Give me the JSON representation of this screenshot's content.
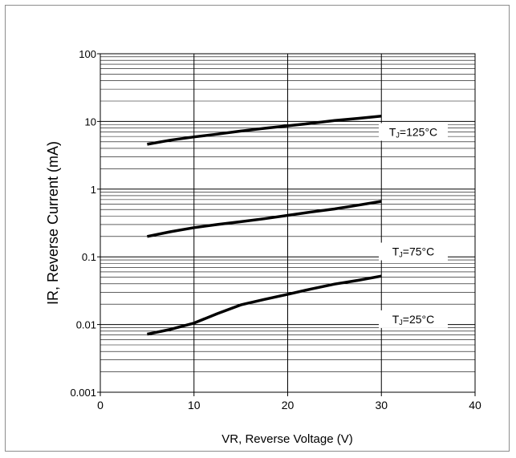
{
  "chart_data": {
    "type": "line",
    "title": "",
    "xlabel": "VR, Reverse Voltage (V)",
    "ylabel": "IR, Reverse Current (mA)",
    "xlim": [
      0,
      40
    ],
    "ylim": [
      0.001,
      100
    ],
    "yscale": "log",
    "grid": true,
    "x_ticks": [
      "0",
      "10",
      "20",
      "30",
      "40"
    ],
    "y_ticks": [
      "0.001",
      "0.01",
      "0.1",
      "1",
      "10",
      "100"
    ],
    "series": [
      {
        "name": "TJ=125°C",
        "x": [
          5,
          7.5,
          10,
          12.5,
          15,
          17.5,
          20,
          22.5,
          25,
          27.5,
          30
        ],
        "values": [
          4.6,
          5.3,
          5.9,
          6.5,
          7.2,
          7.9,
          8.6,
          9.4,
          10.3,
          11.1,
          12.0
        ]
      },
      {
        "name": "TJ=75°C",
        "x": [
          5,
          7.5,
          10,
          12.5,
          15,
          17.5,
          20,
          22.5,
          25,
          27.5,
          30
        ],
        "values": [
          0.2,
          0.235,
          0.27,
          0.3,
          0.33,
          0.365,
          0.41,
          0.46,
          0.51,
          0.58,
          0.66
        ]
      },
      {
        "name": "TJ=25°C",
        "x": [
          5,
          7.5,
          10,
          12.5,
          15,
          17.5,
          20,
          22.5,
          25,
          27.5,
          30
        ],
        "values": [
          0.0072,
          0.0085,
          0.0105,
          0.0145,
          0.0195,
          0.0235,
          0.028,
          0.0335,
          0.0395,
          0.045,
          0.052
        ]
      }
    ],
    "line_color": "#000000",
    "grid_color": "#000000"
  }
}
